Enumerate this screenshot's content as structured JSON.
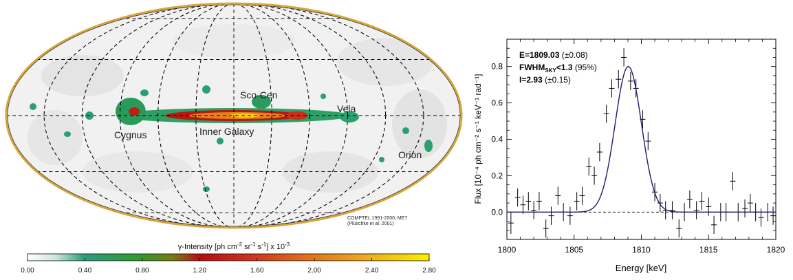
{
  "map": {
    "region_labels": [
      "Sco-Cen",
      "Vela",
      "Cygnus",
      "Inner Galaxy",
      "Orion"
    ],
    "credit_line1": "COMPTEL 1991-2000, ME7",
    "credit_line2": "(Plüschke et al. 2001)",
    "colorbar": {
      "title_prefix": "γ-Intensity [ph cm",
      "title_exp1": "-2",
      "title_mid": " sr",
      "title_exp2": "-1",
      "title_mid2": " s",
      "title_exp3": "-1",
      "title_suffix": "]  x 10",
      "title_exp4": "-3",
      "tick_labels": [
        "0.00",
        "0.40",
        "0.80",
        "1.20",
        "1.60",
        "2.00",
        "2.40",
        "2.80"
      ],
      "range": [
        0.0,
        2.8
      ]
    }
  },
  "chart_data": {
    "type": "scatter",
    "xlabel": "Energy [keV]",
    "ylabel": "Flux [10⁻⁴ ph cm⁻² s⁻¹ keV⁻¹ rad⁻¹]",
    "xlim": [
      1800,
      1820
    ],
    "ylim": [
      -0.15,
      0.95
    ],
    "x_ticks": [
      1800,
      1805,
      1810,
      1815,
      1820
    ],
    "y_ticks": [
      0.0,
      0.2,
      0.4,
      0.6,
      0.8
    ],
    "x_tick_labels": [
      "1800",
      "1805",
      "1810",
      "1815",
      "1820"
    ],
    "y_tick_labels": [
      "0.0",
      "0.2",
      "0.4",
      "0.6",
      "0.8"
    ],
    "annotations": {
      "line1_bold": "E=1809.03",
      "line1_rest": " (±0.08)",
      "line2_bold": "FWHM",
      "line2_sub": "SKY",
      "line2_bold2": "<1.3",
      "line2_rest": " (95%)",
      "line3_bold": "I=2.93",
      "line3_rest": " (±0.15)"
    },
    "fit": {
      "center": 1809.03,
      "amplitude": 0.8,
      "sigma": 0.98
    },
    "baseline": 0.0,
    "points": [
      {
        "x": 1800.3,
        "y": -0.06,
        "err": 0.06
      },
      {
        "x": 1800.8,
        "y": 0.08,
        "err": 0.05
      },
      {
        "x": 1801.2,
        "y": 0.04,
        "err": 0.05
      },
      {
        "x": 1801.6,
        "y": 0.06,
        "err": 0.05
      },
      {
        "x": 1802.0,
        "y": 0.01,
        "err": 0.05
      },
      {
        "x": 1802.4,
        "y": 0.06,
        "err": 0.05
      },
      {
        "x": 1802.9,
        "y": -0.09,
        "err": 0.05
      },
      {
        "x": 1803.3,
        "y": -0.02,
        "err": 0.05
      },
      {
        "x": 1803.8,
        "y": 0.09,
        "err": 0.05
      },
      {
        "x": 1804.2,
        "y": 0.0,
        "err": 0.05
      },
      {
        "x": 1804.7,
        "y": -0.02,
        "err": 0.05
      },
      {
        "x": 1805.2,
        "y": 0.06,
        "err": 0.05
      },
      {
        "x": 1805.6,
        "y": 0.09,
        "err": 0.05
      },
      {
        "x": 1806.1,
        "y": 0.25,
        "err": 0.05
      },
      {
        "x": 1806.5,
        "y": 0.2,
        "err": 0.05
      },
      {
        "x": 1806.9,
        "y": 0.33,
        "err": 0.05
      },
      {
        "x": 1807.4,
        "y": 0.54,
        "err": 0.05
      },
      {
        "x": 1807.8,
        "y": 0.68,
        "err": 0.05
      },
      {
        "x": 1808.3,
        "y": 0.73,
        "err": 0.05
      },
      {
        "x": 1808.7,
        "y": 0.85,
        "err": 0.05
      },
      {
        "x": 1809.2,
        "y": 0.72,
        "err": 0.05
      },
      {
        "x": 1809.6,
        "y": 0.68,
        "err": 0.05
      },
      {
        "x": 1810.1,
        "y": 0.51,
        "err": 0.05
      },
      {
        "x": 1810.5,
        "y": 0.39,
        "err": 0.05
      },
      {
        "x": 1811.0,
        "y": 0.11,
        "err": 0.05
      },
      {
        "x": 1811.4,
        "y": 0.05,
        "err": 0.05
      },
      {
        "x": 1811.8,
        "y": 0.01,
        "err": 0.05
      },
      {
        "x": 1812.3,
        "y": 0.01,
        "err": 0.05
      },
      {
        "x": 1812.8,
        "y": -0.09,
        "err": 0.05
      },
      {
        "x": 1813.2,
        "y": 0.0,
        "err": 0.05
      },
      {
        "x": 1813.6,
        "y": 0.07,
        "err": 0.05
      },
      {
        "x": 1814.1,
        "y": 0.01,
        "err": 0.05
      },
      {
        "x": 1814.5,
        "y": 0.06,
        "err": 0.05
      },
      {
        "x": 1815.0,
        "y": 0.03,
        "err": 0.05
      },
      {
        "x": 1815.4,
        "y": -0.07,
        "err": 0.05
      },
      {
        "x": 1815.9,
        "y": 0.0,
        "err": 0.05
      },
      {
        "x": 1816.3,
        "y": 0.0,
        "err": 0.05
      },
      {
        "x": 1816.8,
        "y": 0.17,
        "err": 0.05
      },
      {
        "x": 1817.2,
        "y": 0.0,
        "err": 0.05
      },
      {
        "x": 1817.7,
        "y": 0.02,
        "err": 0.05
      },
      {
        "x": 1818.1,
        "y": 0.05,
        "err": 0.05
      },
      {
        "x": 1818.5,
        "y": 0.0,
        "err": 0.05
      },
      {
        "x": 1818.9,
        "y": -0.03,
        "err": 0.05
      },
      {
        "x": 1819.4,
        "y": 0.0,
        "err": 0.05
      },
      {
        "x": 1819.8,
        "y": -0.02,
        "err": 0.05
      }
    ],
    "colors": {
      "fit_line": "#1a1a6e",
      "data": "#000000"
    }
  }
}
